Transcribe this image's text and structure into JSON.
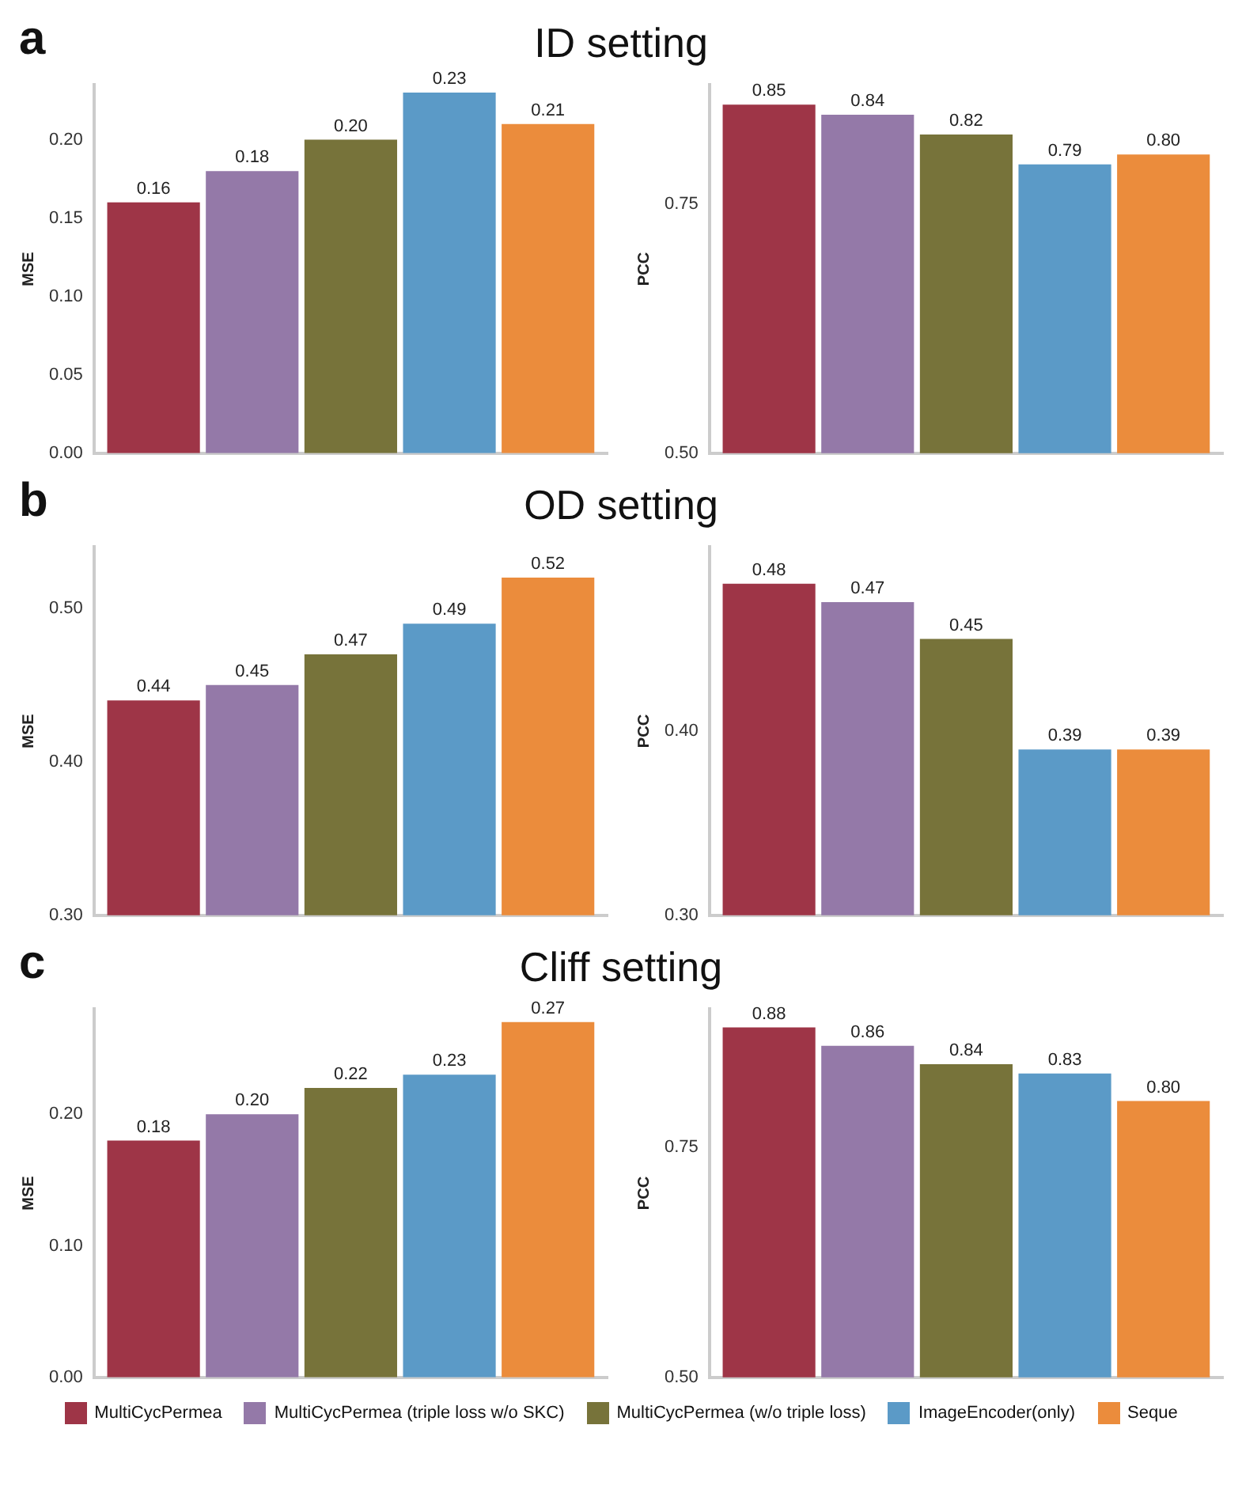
{
  "chart_data": [
    {
      "type": "bar",
      "title": "ID setting",
      "annotations": [
        "a"
      ],
      "ylabel": "MSE",
      "categories": [
        null
      ],
      "ylim": [
        0,
        0.235
      ],
      "yticks": [
        {
          "value": 0,
          "label": "0.00"
        },
        {
          "value": 0.05,
          "label": "0.05"
        },
        {
          "value": 0.1,
          "label": "0.10"
        },
        {
          "value": 0.15,
          "label": "0.15"
        },
        {
          "value": 0.2,
          "label": "0.20"
        }
      ],
      "tick_labels": "y",
      "series": [
        {
          "color": "#9e3547",
          "values": [
            0.16
          ],
          "value_labels": [
            "0.16"
          ]
        },
        {
          "color": "#9479a8",
          "values": [
            0.18
          ],
          "value_labels": [
            "0.18"
          ]
        },
        {
          "color": "#77733a",
          "values": [
            0.2
          ],
          "value_labels": [
            "0.20"
          ]
        },
        {
          "color": "#5b9ac7",
          "values": [
            0.23
          ],
          "value_labels": [
            "0.23"
          ]
        },
        {
          "color": "#eb8c3c",
          "values": [
            0.21
          ],
          "value_labels": [
            "0.21"
          ]
        }
      ]
    },
    {
      "type": "bar",
      "ylabel": "PCC",
      "categories": [
        null
      ],
      "ylim": [
        0.5,
        0.87
      ],
      "yticks": [
        {
          "value": 0.5,
          "label": "0.50"
        },
        0.75
      ],
      "tick_labels": "y",
      "series": [
        {
          "color": "#9e3547",
          "values": [
            0.85
          ],
          "value_labels": [
            "0.85"
          ]
        },
        {
          "color": "#9479a8",
          "values": [
            0.84
          ],
          "value_labels": [
            "0.84"
          ]
        },
        {
          "color": "#77733a",
          "values": [
            0.82
          ],
          "value_labels": [
            "0.82"
          ]
        },
        {
          "color": "#5b9ac7",
          "values": [
            0.79
          ],
          "value_labels": [
            "0.79"
          ]
        },
        {
          "color": "#eb8c3c",
          "values": [
            0.8
          ],
          "value_labels": [
            "0.80"
          ]
        }
      ]
    },
    {
      "type": "bar",
      "title": "OD setting",
      "annotations": [
        "b"
      ],
      "ylabel": "MSE",
      "categories": [
        null
      ],
      "ylim": [
        0.3,
        0.54
      ],
      "yticks": [
        {
          "value": 0.3,
          "label": "0.30"
        },
        {
          "value": 0.4,
          "label": "0.40"
        },
        {
          "value": 0.5,
          "label": "0.50"
        }
      ],
      "tick_labels": "y",
      "series": [
        {
          "color": "#9e3547",
          "values": [
            0.44
          ],
          "value_labels": [
            "0.44"
          ]
        },
        {
          "color": "#9479a8",
          "values": [
            0.45
          ],
          "value_labels": [
            "0.45"
          ]
        },
        {
          "color": "#77733a",
          "values": [
            0.47
          ],
          "value_labels": [
            "0.47"
          ]
        },
        {
          "color": "#5b9ac7",
          "values": [
            0.49
          ],
          "value_labels": [
            "0.49"
          ]
        },
        {
          "color": "#eb8c3c",
          "values": [
            0.52
          ],
          "value_labels": [
            "0.52"
          ]
        }
      ]
    },
    {
      "type": "bar",
      "ylabel": "PCC",
      "categories": [
        null
      ],
      "ylim": [
        0.3,
        0.5
      ],
      "yticks": [
        {
          "value": 0.3,
          "label": "0.30"
        },
        {
          "value": 0.4,
          "label": "0.40"
        }
      ],
      "tick_labels": "y",
      "series": [
        {
          "color": "#9e3547",
          "values": [
            0.48
          ],
          "value_labels": [
            "0.48"
          ]
        },
        {
          "color": "#9479a8",
          "values": [
            0.47
          ],
          "value_labels": [
            "0.47"
          ]
        },
        {
          "color": "#77733a",
          "values": [
            0.45
          ],
          "value_labels": [
            "0.45"
          ]
        },
        {
          "color": "#5b9ac7",
          "values": [
            0.39
          ],
          "value_labels": [
            "0.39"
          ]
        },
        {
          "color": "#eb8c3c",
          "values": [
            0.39
          ],
          "value_labels": [
            "0.39"
          ]
        }
      ]
    },
    {
      "type": "bar",
      "title": "Cliff setting",
      "annotations": [
        "c"
      ],
      "ylabel": "MSE",
      "categories": [
        null
      ],
      "ylim": [
        0,
        0.28
      ],
      "yticks": [
        {
          "value": 0,
          "label": "0.00"
        },
        {
          "value": 0.1,
          "label": "0.10"
        },
        {
          "value": 0.2,
          "label": "0.20"
        }
      ],
      "tick_labels": "y",
      "series": [
        {
          "color": "#9e3547",
          "values": [
            0.18
          ],
          "value_labels": [
            "0.18"
          ]
        },
        {
          "color": "#9479a8",
          "values": [
            0.2
          ],
          "value_labels": [
            "0.20"
          ]
        },
        {
          "color": "#77733a",
          "values": [
            0.22
          ],
          "value_labels": [
            "0.22"
          ]
        },
        {
          "color": "#5b9ac7",
          "values": [
            0.23
          ],
          "value_labels": [
            "0.23"
          ]
        },
        {
          "color": "#eb8c3c",
          "values": [
            0.27
          ],
          "value_labels": [
            "0.27"
          ]
        }
      ]
    },
    {
      "type": "bar",
      "ylabel": "PCC",
      "categories": [
        null
      ],
      "ylim": [
        0.5,
        0.9
      ],
      "yticks": [
        {
          "value": 0.5,
          "label": "0.50"
        },
        0.75
      ],
      "tick_labels": "y",
      "legend": "bottom",
      "series": [
        {
          "name": "MultiCycPermea",
          "color": "#9e3547",
          "values": [
            0.88
          ],
          "value_labels": [
            "0.88"
          ]
        },
        {
          "name": "MultiCycPermea (triple loss w/o SKC)",
          "color": "#9479a8",
          "values": [
            0.86
          ],
          "value_labels": [
            "0.86"
          ]
        },
        {
          "name": "MultiCycPermea (w/o triple loss)",
          "color": "#77733a",
          "values": [
            0.84
          ],
          "value_labels": [
            "0.84"
          ]
        },
        {
          "name": "ImageEncoder(only)",
          "color": "#5b9ac7",
          "values": [
            0.83
          ],
          "value_labels": [
            "0.83"
          ]
        },
        {
          "name": "Seque",
          "color": "#eb8c3c",
          "values": [
            0.8
          ],
          "value_labels": [
            "0.80"
          ]
        }
      ]
    }
  ]
}
